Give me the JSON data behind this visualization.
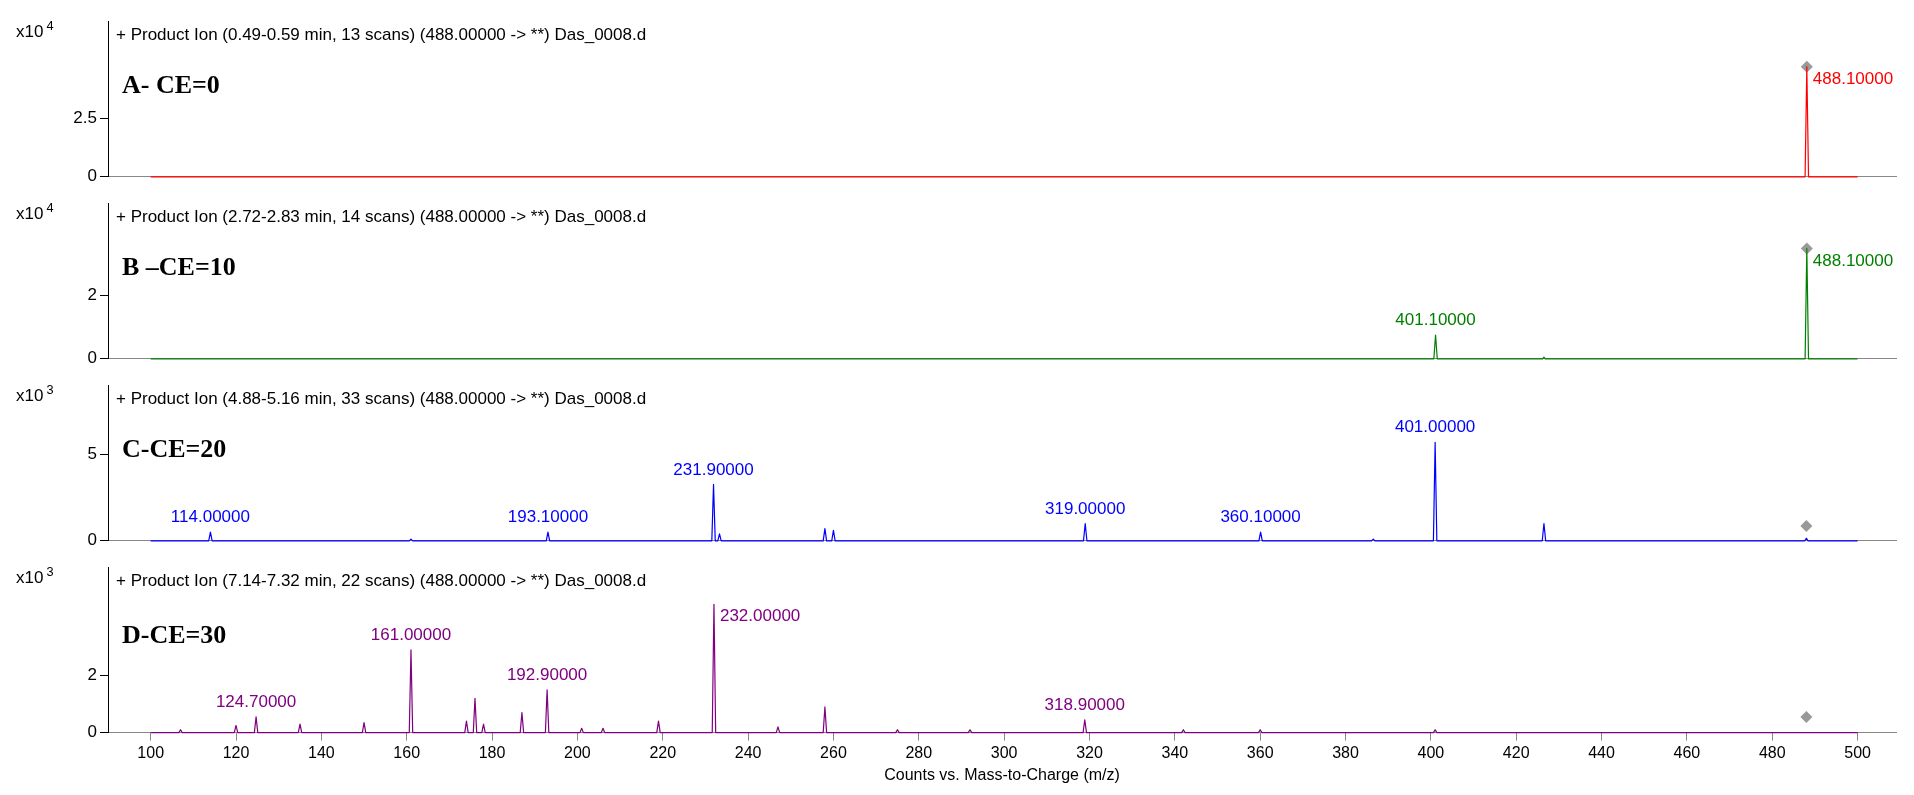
{
  "chart_data": [
    {
      "type": "line",
      "title": "+ Product Ion (0.49-0.59 min, 13 scans) (488.00000 -> **) Das_0008.d",
      "ylabel": "x10$^{4}$",
      "xlim": [
        90,
        509
      ],
      "ylim": [
        0,
        6.7
      ],
      "yticks": [
        0,
        2.5
      ],
      "tick_labels": "y",
      "legend": false,
      "grid": false,
      "marker": "none",
      "annotations": [
        "A- CE=0",
        {
          "text": "488.10000",
          "x": 488.1,
          "y": 4.74
        }
      ],
      "series": [
        {
          "type": "line",
          "color": "#ff0000",
          "x": [
            100,
            487.7,
            488.1,
            488.5,
            500
          ],
          "values": [
            0,
            0,
            4.74,
            0,
            0
          ]
        },
        {
          "type": "scatter",
          "marker": "diamond",
          "color": "#999999",
          "x": [
            488.1
          ],
          "values": [
            4.74
          ]
        }
      ]
    },
    {
      "type": "line",
      "title": "+ Product Ion (2.72-2.83 min, 14 scans) (488.00000 -> **) Das_0008.d",
      "ylabel": "x10$^{4}$",
      "xlim": [
        90,
        509
      ],
      "ylim": [
        0,
        4.9
      ],
      "yticks": [
        0,
        2
      ],
      "tick_labels": "y",
      "legend": false,
      "grid": false,
      "marker": "none",
      "annotations": [
        "B –CE=10",
        {
          "text": "401.10000",
          "x": 401.1,
          "y": 0.75
        },
        {
          "text": "488.10000",
          "x": 488.1,
          "y": 3.47
        }
      ],
      "series": [
        {
          "type": "line",
          "color": "#008000",
          "x": [
            100,
            400.7,
            401.1,
            401.5,
            426.2,
            426.5,
            426.8,
            487.7,
            488.1,
            488.5,
            500
          ],
          "values": [
            0,
            0,
            0.75,
            0,
            0,
            0.05,
            0,
            0,
            3.47,
            0,
            0
          ]
        },
        {
          "type": "scatter",
          "marker": "diamond",
          "color": "#999999",
          "x": [
            488.1
          ],
          "values": [
            3.47
          ]
        }
      ]
    },
    {
      "type": "line",
      "title": "+ Product Ion (4.88-5.16 min, 33 scans) (488.00000 -> **) Das_0008.d",
      "ylabel": "x10$^{3}$",
      "xlim": [
        90,
        509
      ],
      "ylim": [
        0,
        9
      ],
      "yticks": [
        0,
        5
      ],
      "tick_labels": "y",
      "legend": false,
      "grid": false,
      "marker": "none",
      "annotations": [
        "C-CE=20",
        {
          "text": "114.00000",
          "x": 114,
          "y": 0.5
        },
        {
          "text": "193.10000",
          "x": 193.1,
          "y": 0.5
        },
        {
          "text": "231.90000",
          "x": 231.9,
          "y": 3.26
        },
        {
          "text": "319.00000",
          "x": 319,
          "y": 1.0
        },
        {
          "text": "360.10000",
          "x": 360.1,
          "y": 0.5
        },
        {
          "text": "401.00000",
          "x": 401,
          "y": 5.7
        }
      ],
      "series": [
        {
          "type": "line",
          "color": "#0000ff",
          "x": [
            100,
            113.6,
            114,
            114.4,
            160.6,
            161,
            161.4,
            192.7,
            193.1,
            193.5,
            231.5,
            231.9,
            232.3,
            232.9,
            233.3,
            233.7,
            257.6,
            258,
            258.4,
            259.6,
            260,
            260.4,
            318.6,
            319,
            319.4,
            359.7,
            360.1,
            360.5,
            386.1,
            386.5,
            386.9,
            400.6,
            401,
            401.4,
            426.1,
            426.5,
            426.9,
            487.6,
            488,
            488.4,
            500
          ],
          "values": [
            0,
            0,
            0.5,
            0,
            0,
            0.1,
            0,
            0,
            0.5,
            0,
            0,
            3.26,
            0,
            0,
            0.4,
            0,
            0,
            0.7,
            0,
            0,
            0.6,
            0,
            0,
            1.0,
            0,
            0,
            0.5,
            0,
            0,
            0.1,
            0,
            0,
            5.7,
            0,
            0,
            1.0,
            0,
            0,
            0.15,
            0,
            0
          ]
        },
        {
          "type": "scatter",
          "marker": "diamond",
          "color": "#999999",
          "x": [
            488
          ],
          "values": [
            0.85
          ]
        }
      ]
    },
    {
      "type": "line",
      "title": "+ Product Ion (7.14-7.32 min, 22 scans) (488.00000 -> **) Das_0008.d",
      "ylabel": "x10$^{3}$",
      "xlabel": "Counts vs. Mass-to-Charge (m/z)",
      "xlim": [
        90,
        509
      ],
      "ylim": [
        0,
        5.8
      ],
      "yticks": [
        0,
        2
      ],
      "xticks": [
        100,
        120,
        140,
        160,
        180,
        200,
        220,
        240,
        260,
        280,
        300,
        320,
        340,
        360,
        380,
        400,
        420,
        440,
        460,
        480,
        500
      ],
      "legend": false,
      "grid": false,
      "marker": "none",
      "annotations": [
        "D-CE=30",
        {
          "text": "124.70000",
          "x": 124.7,
          "y": 0.55
        },
        {
          "text": "161.00000",
          "x": 161,
          "y": 2.9
        },
        {
          "text": "192.90000",
          "x": 192.9,
          "y": 1.5
        },
        {
          "text": "232.00000",
          "x": 232,
          "y": 4.5
        },
        {
          "text": "318.90000",
          "x": 318.9,
          "y": 0.45
        }
      ],
      "series": [
        {
          "type": "line",
          "color": "#800080",
          "x": [
            100,
            106.6,
            107,
            107.4,
            119.6,
            120,
            120.4,
            124.3,
            124.7,
            125.1,
            134.6,
            135,
            135.4,
            149.6,
            150,
            150.4,
            160.6,
            161,
            161.4,
            173.6,
            174,
            174.4,
            175.6,
            176,
            176.4,
            177.6,
            178,
            178.4,
            186.6,
            187,
            187.4,
            192.5,
            192.9,
            193.3,
            200.6,
            201,
            201.4,
            205.6,
            206,
            206.4,
            218.6,
            219,
            219.4,
            231.6,
            232,
            232.4,
            246.6,
            247,
            247.4,
            257.6,
            258,
            258.4,
            274.6,
            275,
            275.4,
            291.6,
            292,
            292.4,
            318.5,
            318.9,
            319.3,
            341.6,
            342,
            342.4,
            359.6,
            360,
            360.4,
            400.6,
            401,
            401.4,
            500
          ],
          "values": [
            0,
            0,
            0.1,
            0,
            0,
            0.25,
            0,
            0,
            0.55,
            0,
            0,
            0.3,
            0,
            0,
            0.35,
            0,
            0,
            2.9,
            0,
            0,
            0.4,
            0,
            0,
            1.2,
            0,
            0,
            0.3,
            0,
            0,
            0.7,
            0,
            0,
            1.5,
            0,
            0,
            0.15,
            0,
            0,
            0.15,
            0,
            0,
            0.4,
            0,
            0,
            4.5,
            0,
            0,
            0.2,
            0,
            0,
            0.9,
            0,
            0,
            0.1,
            0,
            0,
            0.1,
            0,
            0,
            0.45,
            0,
            0,
            0.1,
            0,
            0,
            0.1,
            0,
            0,
            0.1,
            0,
            0
          ]
        },
        {
          "type": "scatter",
          "marker": "diamond",
          "color": "#999999",
          "x": [
            488
          ],
          "values": [
            0.55
          ]
        }
      ]
    }
  ]
}
